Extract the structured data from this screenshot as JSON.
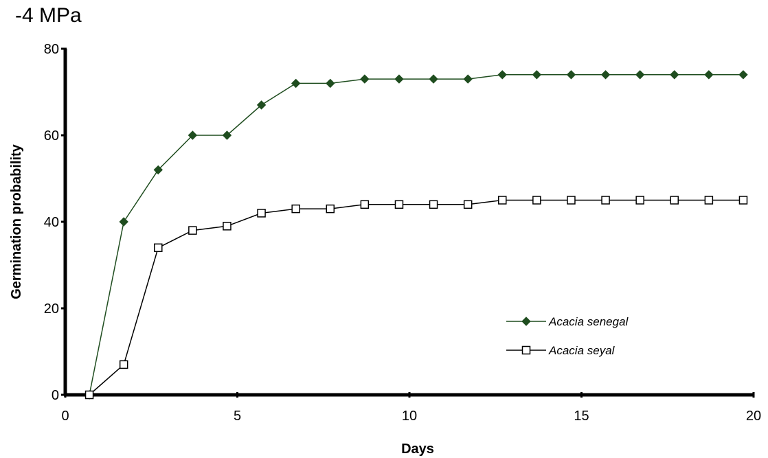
{
  "chart_data": {
    "type": "line",
    "title": "-4 MPa",
    "xlabel": "Days",
    "ylabel": "Germination probability",
    "xlim": [
      0,
      20
    ],
    "ylim": [
      0,
      80
    ],
    "xticks": [
      "0",
      "5",
      "10",
      "15",
      "20"
    ],
    "yticks": [
      "0",
      "20",
      "40",
      "60",
      "80"
    ],
    "grid": false,
    "legend_position": "lower-right",
    "series": [
      {
        "name": "Acacia senegal",
        "color": "#1f4d1f",
        "marker": "filled-diamond",
        "x": [
          0.7,
          1.7,
          2.7,
          3.7,
          4.7,
          5.7,
          6.7,
          7.7,
          8.7,
          9.7,
          10.7,
          11.7,
          12.7,
          13.7,
          14.7,
          15.7,
          16.7,
          17.7,
          18.7,
          19.7
        ],
        "values": [
          0,
          40,
          52,
          60,
          60,
          67,
          72,
          72,
          73,
          73,
          73,
          73,
          74,
          74,
          74,
          74,
          74,
          74,
          74,
          74
        ]
      },
      {
        "name": "Acacia seyal",
        "color": "#000000",
        "marker": "open-square",
        "x": [
          0.7,
          1.7,
          2.7,
          3.7,
          4.7,
          5.7,
          6.7,
          7.7,
          8.7,
          9.7,
          10.7,
          11.7,
          12.7,
          13.7,
          14.7,
          15.7,
          16.7,
          17.7,
          18.7,
          19.7
        ],
        "values": [
          0,
          7,
          34,
          38,
          39,
          42,
          43,
          43,
          44,
          44,
          44,
          44,
          45,
          45,
          45,
          45,
          45,
          45,
          45,
          45
        ]
      }
    ]
  }
}
